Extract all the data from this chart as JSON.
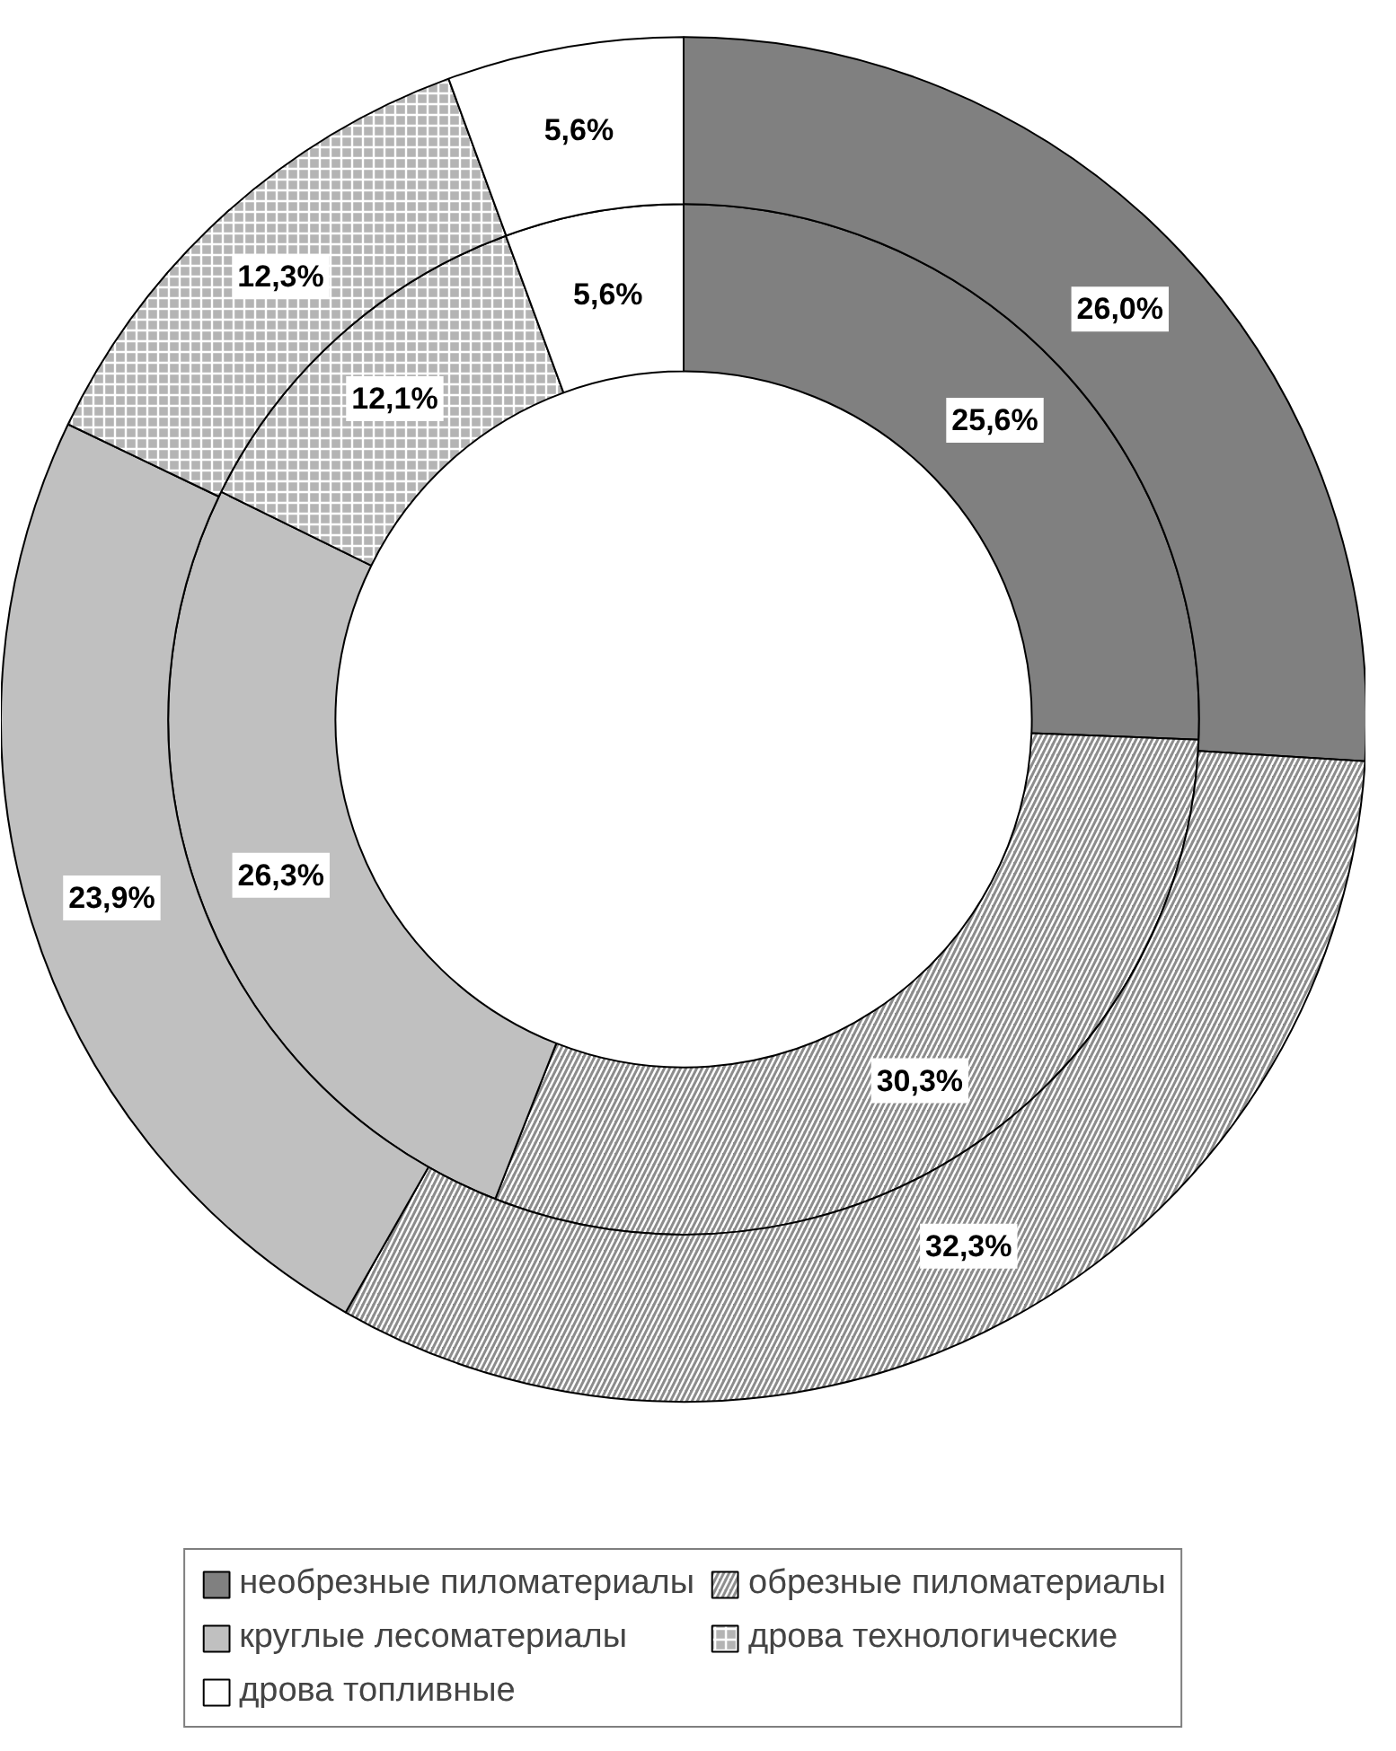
{
  "chart_data": {
    "type": "donut",
    "categories": [
      "необрезные пиломатериалы",
      "обрезные пиломатериалы",
      "круглые лесоматериалы",
      "дрова технологические",
      "дрова топливные"
    ],
    "colors": [
      "#808080",
      "#8c8c8c",
      "#c0c0c0",
      "#b4b4b4",
      "#ffffff"
    ],
    "data_labels": true,
    "series": [
      {
        "values": [
          25.6,
          30.3,
          26.3,
          12.1,
          5.6
        ],
        "value_labels": [
          "25,6%",
          "30,3%",
          "26,3%",
          "12,1%",
          "5,6%"
        ]
      },
      {
        "values": [
          26.0,
          32.3,
          23.9,
          12.3,
          5.6
        ],
        "value_labels": [
          "26,0%",
          "32,3%",
          "23,9%",
          "12,3%",
          "5,6%"
        ]
      }
    ],
    "legend": "bottom"
  }
}
